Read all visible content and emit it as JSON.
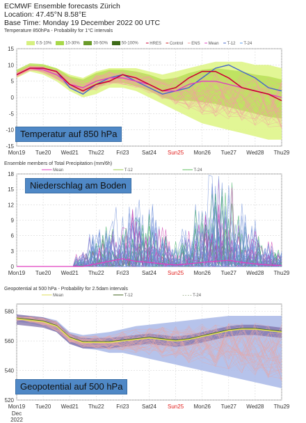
{
  "header": {
    "line1": "ECMWF Ensemble forecasts Zürich",
    "line2": "Location:  47.45°N 8.58°E",
    "line3": "Base Time: Monday 19 December 2022 00 UTC"
  },
  "days": [
    "Mon19",
    "Tue20",
    "Wed21",
    "Thu22",
    "Fri23",
    "Sat24",
    "Sun25",
    "Mon26",
    "Tue27",
    "Wed28",
    "Thu29"
  ],
  "last_axis_extra": [
    "Dec",
    "2022"
  ],
  "colors": {
    "sunday": "#e0201e",
    "hres": "#cc0033",
    "mean": "#e040c0",
    "t12": "#4466cc",
    "t24": "#5599ee",
    "ens": "#f2a0a0",
    "control": "#cc2222"
  },
  "chart_data": [
    {
      "type": "line",
      "title": "Temperature 850hPa - Probability for 1°C intervals",
      "prob_legend": [
        "0.5-10%",
        "10-30%",
        "30-50%",
        "50-100%"
      ],
      "series_legend": [
        "HRES",
        "Control",
        "ENS",
        "Mean",
        "T-12",
        "T-24"
      ],
      "overlay_label": "Temperatur auf 850 hPa",
      "ylim": [
        -15,
        15
      ],
      "yticks": [
        15,
        10,
        5,
        0,
        -5,
        -10,
        -15
      ],
      "x": [
        0,
        0.5,
        1,
        1.5,
        2,
        2.5,
        3,
        3.5,
        4,
        4.5,
        5,
        5.5,
        6,
        6.5,
        7,
        7.5,
        8,
        8.5,
        9,
        9.5,
        10
      ],
      "mean": [
        7,
        9,
        8.5,
        7,
        4,
        3,
        5,
        6,
        6,
        5,
        4,
        2,
        2,
        4,
        5,
        5,
        4,
        3,
        2,
        1,
        0
      ],
      "hres": [
        7,
        9,
        9,
        8,
        4,
        2,
        4,
        5,
        7,
        6,
        4,
        2,
        3,
        6,
        8,
        8,
        6,
        3,
        2,
        1,
        -1
      ],
      "t12": [
        7,
        9,
        9,
        8,
        3,
        1,
        4,
        6,
        7,
        5,
        3,
        1,
        2,
        3,
        6,
        9,
        10,
        8,
        6,
        3,
        2
      ],
      "spread_low": [
        6,
        8,
        7,
        5,
        2,
        0,
        1,
        3,
        3,
        2,
        0,
        -2,
        -4,
        -6,
        -8,
        -9,
        -10,
        -11,
        -12,
        -13,
        -13
      ],
      "spread_high": [
        8,
        10,
        10,
        9,
        7,
        6,
        8,
        9,
        9,
        9,
        8,
        7,
        8,
        9,
        10,
        11,
        11,
        11,
        10,
        10,
        9
      ]
    },
    {
      "type": "line",
      "title": "Ensemble members of Total Precipitation (mm/6h)",
      "series_legend": [
        "Mean",
        "T-12",
        "T-24"
      ],
      "overlay_label": "Niederschlag am Boden",
      "ylim": [
        0,
        18
      ],
      "yticks": [
        18,
        15,
        12,
        9,
        6,
        3,
        0
      ],
      "x": [
        0,
        0.5,
        1,
        1.5,
        2,
        2.5,
        3,
        3.5,
        4,
        4.5,
        5,
        5.5,
        6,
        6.5,
        7,
        7.5,
        8,
        8.5,
        9,
        9.5,
        10
      ],
      "mean": [
        0,
        0,
        0,
        0,
        0,
        0,
        0.5,
        1,
        1.5,
        1,
        0.8,
        0.5,
        0.3,
        0.5,
        0.8,
        1,
        1.2,
        0.8,
        0.5,
        0.3,
        0.2
      ],
      "member_peaks": [
        0,
        0,
        0,
        0,
        0,
        2.5,
        6,
        8,
        10,
        11,
        11,
        8,
        4,
        6,
        10,
        15,
        15,
        10,
        8,
        4,
        3
      ]
    },
    {
      "type": "line",
      "title": "Geopotential at 500 hPa - Probability for 2.5dam intervals",
      "series_legend": [
        "Mean",
        "T-12",
        "T-24"
      ],
      "overlay_label": "Geopotential auf 500 hPa",
      "ylim": [
        520,
        585
      ],
      "yticks": [
        580,
        560,
        540,
        520
      ],
      "x": [
        0,
        0.5,
        1,
        1.5,
        2,
        2.5,
        3,
        3.5,
        4,
        4.5,
        5,
        5.5,
        6,
        6.5,
        7,
        7.5,
        8,
        8.5,
        9,
        9.5,
        10
      ],
      "mean": [
        575,
        574,
        573,
        570,
        562,
        559,
        559,
        559,
        560,
        561,
        562,
        561,
        560,
        561,
        563,
        565,
        567,
        568,
        568,
        567,
        566
      ],
      "spread_low": [
        573,
        572,
        570,
        566,
        558,
        555,
        554,
        552,
        552,
        550,
        548,
        546,
        544,
        542,
        540,
        538,
        536,
        534,
        532,
        530,
        528
      ],
      "spread_high": [
        577,
        577,
        576,
        574,
        566,
        564,
        565,
        566,
        568,
        570,
        571,
        572,
        573,
        574,
        575,
        576,
        577,
        577,
        577,
        577,
        577
      ]
    }
  ]
}
